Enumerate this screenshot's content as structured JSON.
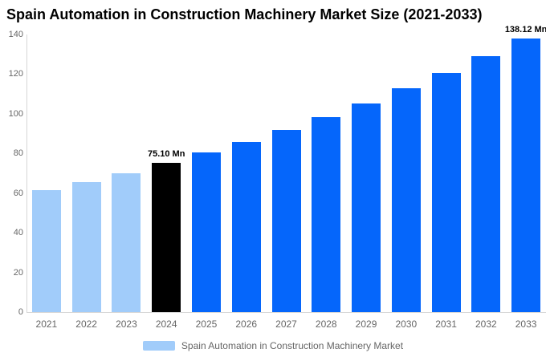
{
  "title": "Spain Automation in Construction Machinery Market Size (2021-2033)",
  "chart_data": {
    "type": "bar",
    "title": "Spain Automation in Construction Machinery Market Size (2021-2033)",
    "categories": [
      "2021",
      "2022",
      "2023",
      "2024",
      "2025",
      "2026",
      "2027",
      "2028",
      "2029",
      "2030",
      "2031",
      "2032",
      "2033"
    ],
    "series": [
      {
        "name": "Spain Automation in Construction Machinery Market",
        "values": [
          61.31,
          65.6,
          70.19,
          75.1,
          80.36,
          85.98,
          92.0,
          98.44,
          105.33,
          112.71,
          120.6,
          129.04,
          138.12
        ]
      }
    ],
    "unit": "Mn",
    "xlabel": "",
    "ylabel": "",
    "ylim": [
      0,
      140
    ],
    "yticks": [
      0,
      20,
      40,
      60,
      80,
      100,
      120,
      140
    ],
    "grid": false,
    "legend_position": "bottom",
    "data_labels": {
      "2024": "75.10 Mn",
      "2033": "138.12 Mn"
    },
    "bar_roles": [
      "historical",
      "historical",
      "historical",
      "base_year",
      "forecast",
      "forecast",
      "forecast",
      "forecast",
      "forecast",
      "forecast",
      "forecast",
      "forecast",
      "forecast"
    ]
  },
  "colors": {
    "historical": "#A1CCFA",
    "base_year": "#000000",
    "forecast": "#0566FB",
    "axis_line": "#d6d6d6",
    "axis_text": "#666666",
    "title_text": "#000000"
  },
  "legend": {
    "label": "Spain Automation in Construction Machinery Market",
    "swatch_color": "#A1CCFA"
  }
}
